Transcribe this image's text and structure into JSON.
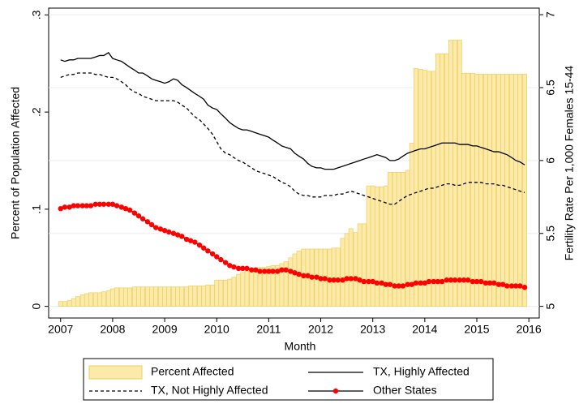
{
  "chart_data": {
    "type": "combo",
    "x_label": "Month",
    "y_label": "Percent of Population Affected",
    "y2_label": "Fertility Rate Per 1,000 Females 15-44",
    "x": [
      2007,
      2007.08,
      2007.17,
      2007.25,
      2007.33,
      2007.42,
      2007.5,
      2007.58,
      2007.67,
      2007.75,
      2007.83,
      2007.92,
      2008,
      2008.08,
      2008.17,
      2008.25,
      2008.33,
      2008.42,
      2008.5,
      2008.58,
      2008.67,
      2008.75,
      2008.83,
      2008.92,
      2009,
      2009.08,
      2009.17,
      2009.25,
      2009.33,
      2009.42,
      2009.5,
      2009.58,
      2009.67,
      2009.75,
      2009.83,
      2009.92,
      2010,
      2010.08,
      2010.17,
      2010.25,
      2010.33,
      2010.42,
      2010.5,
      2010.58,
      2010.67,
      2010.75,
      2010.83,
      2010.92,
      2011,
      2011.08,
      2011.17,
      2011.25,
      2011.33,
      2011.42,
      2011.5,
      2011.58,
      2011.67,
      2011.75,
      2011.83,
      2011.92,
      2012,
      2012.08,
      2012.17,
      2012.25,
      2012.33,
      2012.42,
      2012.5,
      2012.58,
      2012.67,
      2012.75,
      2012.83,
      2012.92,
      2013,
      2013.08,
      2013.17,
      2013.25,
      2013.33,
      2013.42,
      2013.5,
      2013.58,
      2013.67,
      2013.75,
      2013.83,
      2013.92,
      2014,
      2014.08,
      2014.17,
      2014.25,
      2014.33,
      2014.42,
      2014.5,
      2014.58,
      2014.67,
      2014.75,
      2014.83,
      2014.92,
      2015,
      2015.08,
      2015.17,
      2015.25,
      2015.33,
      2015.42,
      2015.5,
      2015.58,
      2015.67,
      2015.75,
      2015.83,
      2015.92
    ],
    "xlim": [
      2006.77,
      2016.2
    ],
    "xticks": [
      2007,
      2008,
      2009,
      2010,
      2011,
      2012,
      2013,
      2014,
      2015,
      2016
    ],
    "ylim": [
      -0.012,
      0.307
    ],
    "yticks": [
      0,
      {
        "value": 0.1,
        "label": ".1"
      },
      {
        "value": 0.2,
        "label": ".2"
      },
      {
        "value": 0.3,
        "label": ".3"
      }
    ],
    "y2lim": [
      4.92,
      7.045
    ],
    "y2ticks": [
      5,
      5.5,
      6,
      6.5,
      7
    ],
    "grid": "y2",
    "legend": "bottom",
    "series": [
      {
        "name": "Percent Affected",
        "type": "bar",
        "color": "#fbeaa8",
        "edgecolor": "#efcd66",
        "values": [
          0.005,
          0.005,
          0.006,
          0.008,
          0.01,
          0.012,
          0.013,
          0.014,
          0.014,
          0.014,
          0.015,
          0.016,
          0.018,
          0.019,
          0.019,
          0.019,
          0.019,
          0.02,
          0.02,
          0.02,
          0.02,
          0.02,
          0.02,
          0.02,
          0.02,
          0.02,
          0.02,
          0.02,
          0.02,
          0.02,
          0.021,
          0.021,
          0.021,
          0.021,
          0.022,
          0.022,
          0.027,
          0.027,
          0.027,
          0.028,
          0.03,
          0.033,
          0.035,
          0.036,
          0.038,
          0.039,
          0.04,
          0.04,
          0.041,
          0.042,
          0.042,
          0.044,
          0.046,
          0.05,
          0.054,
          0.057,
          0.059,
          0.059,
          0.059,
          0.059,
          0.059,
          0.059,
          0.059,
          0.06,
          0.06,
          0.07,
          0.075,
          0.08,
          0.076,
          0.085,
          0.085,
          0.124,
          0.124,
          0.123,
          0.123,
          0.124,
          0.138,
          0.138,
          0.138,
          0.138,
          0.14,
          0.168,
          0.245,
          0.244,
          0.243,
          0.242,
          0.242,
          0.26,
          0.26,
          0.26,
          0.274,
          0.274,
          0.274,
          0.24,
          0.24,
          0.24,
          0.239,
          0.239,
          0.239,
          0.239,
          0.239,
          0.239,
          0.239,
          0.239,
          0.239,
          0.239,
          0.239,
          0.239
        ]
      },
      {
        "name": "TX, Highly Affected",
        "type": "line",
        "axis": "y2",
        "color": "#000000",
        "values": [
          6.69,
          6.68,
          6.69,
          6.69,
          6.7,
          6.7,
          6.7,
          6.7,
          6.71,
          6.72,
          6.72,
          6.74,
          6.7,
          6.69,
          6.68,
          6.66,
          6.64,
          6.62,
          6.6,
          6.6,
          6.58,
          6.56,
          6.55,
          6.54,
          6.53,
          6.54,
          6.56,
          6.55,
          6.52,
          6.5,
          6.48,
          6.46,
          6.44,
          6.42,
          6.38,
          6.36,
          6.35,
          6.32,
          6.29,
          6.26,
          6.24,
          6.22,
          6.21,
          6.21,
          6.2,
          6.19,
          6.18,
          6.17,
          6.16,
          6.14,
          6.12,
          6.1,
          6.09,
          6.08,
          6.05,
          6.03,
          6.01,
          5.98,
          5.96,
          5.95,
          5.95,
          5.94,
          5.94,
          5.94,
          5.95,
          5.96,
          5.97,
          5.98,
          5.99,
          6.0,
          6.01,
          6.02,
          6.03,
          6.04,
          6.03,
          6.02,
          6.0,
          6.0,
          6.01,
          6.03,
          6.05,
          6.06,
          6.07,
          6.08,
          6.08,
          6.09,
          6.1,
          6.11,
          6.12,
          6.12,
          6.12,
          6.12,
          6.11,
          6.11,
          6.11,
          6.1,
          6.1,
          6.09,
          6.08,
          6.07,
          6.06,
          6.06,
          6.05,
          6.04,
          6.02,
          6.0,
          5.99,
          5.97
        ]
      },
      {
        "name": "TX, Not Highly Affected",
        "type": "line",
        "axis": "y2",
        "color": "#000000",
        "dashed": true,
        "values": [
          6.57,
          6.58,
          6.59,
          6.59,
          6.6,
          6.6,
          6.6,
          6.6,
          6.59,
          6.59,
          6.58,
          6.57,
          6.57,
          6.56,
          6.54,
          6.52,
          6.49,
          6.47,
          6.46,
          6.44,
          6.43,
          6.42,
          6.41,
          6.41,
          6.41,
          6.41,
          6.41,
          6.4,
          6.38,
          6.36,
          6.33,
          6.3,
          6.28,
          6.25,
          6.22,
          6.18,
          6.13,
          6.08,
          6.05,
          6.04,
          6.02,
          6.0,
          5.99,
          5.97,
          5.95,
          5.93,
          5.92,
          5.91,
          5.9,
          5.89,
          5.87,
          5.85,
          5.84,
          5.82,
          5.79,
          5.77,
          5.76,
          5.76,
          5.75,
          5.75,
          5.75,
          5.76,
          5.76,
          5.76,
          5.77,
          5.77,
          5.78,
          5.79,
          5.78,
          5.77,
          5.76,
          5.75,
          5.74,
          5.73,
          5.72,
          5.71,
          5.7,
          5.7,
          5.72,
          5.74,
          5.76,
          5.77,
          5.78,
          5.79,
          5.8,
          5.81,
          5.81,
          5.82,
          5.83,
          5.84,
          5.84,
          5.83,
          5.83,
          5.84,
          5.85,
          5.85,
          5.85,
          5.85,
          5.84,
          5.84,
          5.84,
          5.83,
          5.83,
          5.82,
          5.81,
          5.8,
          5.79,
          5.78
        ]
      },
      {
        "name": "Other States",
        "type": "line",
        "axis": "y2",
        "color": "#000000",
        "marker": true,
        "marker_color": "#ff0000",
        "values": [
          5.67,
          5.68,
          5.68,
          5.69,
          5.69,
          5.69,
          5.69,
          5.69,
          5.7,
          5.7,
          5.7,
          5.7,
          5.7,
          5.69,
          5.68,
          5.67,
          5.66,
          5.64,
          5.62,
          5.6,
          5.58,
          5.56,
          5.54,
          5.53,
          5.52,
          5.51,
          5.5,
          5.49,
          5.48,
          5.46,
          5.45,
          5.44,
          5.42,
          5.4,
          5.38,
          5.36,
          5.34,
          5.32,
          5.3,
          5.28,
          5.27,
          5.26,
          5.26,
          5.26,
          5.25,
          5.25,
          5.24,
          5.24,
          5.24,
          5.24,
          5.24,
          5.25,
          5.25,
          5.24,
          5.23,
          5.22,
          5.21,
          5.21,
          5.2,
          5.2,
          5.19,
          5.19,
          5.18,
          5.18,
          5.18,
          5.18,
          5.19,
          5.19,
          5.19,
          5.18,
          5.17,
          5.17,
          5.17,
          5.16,
          5.16,
          5.15,
          5.15,
          5.14,
          5.14,
          5.14,
          5.15,
          5.15,
          5.16,
          5.16,
          5.16,
          5.17,
          5.17,
          5.17,
          5.17,
          5.18,
          5.18,
          5.18,
          5.18,
          5.18,
          5.18,
          5.17,
          5.17,
          5.17,
          5.16,
          5.16,
          5.16,
          5.15,
          5.15,
          5.14,
          5.14,
          5.14,
          5.14,
          5.13
        ]
      }
    ]
  }
}
